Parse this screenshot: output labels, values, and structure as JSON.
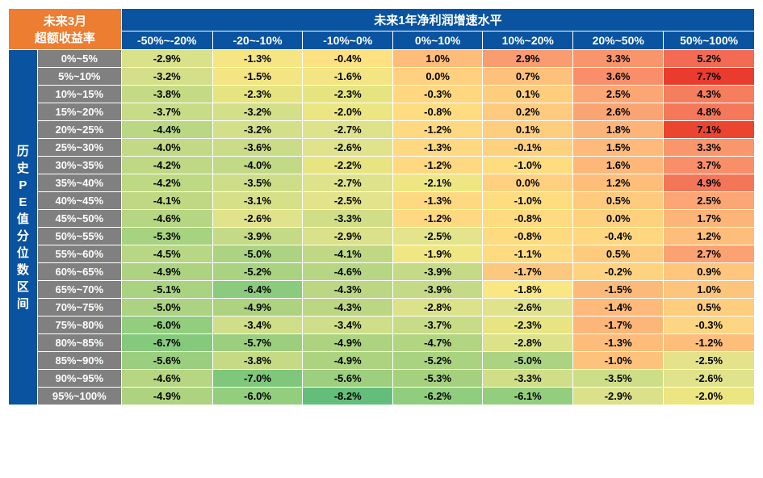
{
  "corner": [
    "未来3月",
    "超额收益率"
  ],
  "topHeader": "未来1年净利润增速水平",
  "sideHeader": "历史PE值分位数区间",
  "colHeaders": [
    "-50%~-20%",
    "-20~-10%",
    "-10%~0%",
    "0%~10%",
    "10%~20%",
    "20%~50%",
    "50%~100%"
  ],
  "rowLabels": [
    "0%~5%",
    "5%~10%",
    "10%~15%",
    "15%~20%",
    "20%~25%",
    "25%~30%",
    "30%~35%",
    "35%~40%",
    "40%~45%",
    "45%~50%",
    "50%~55%",
    "55%~60%",
    "60%~65%",
    "65%~70%",
    "70%~75%",
    "75%~80%",
    "80%~85%",
    "85%~90%",
    "90%~95%",
    "95%~100%"
  ],
  "values": [
    [
      "-2.9%",
      "-1.3%",
      "-0.4%",
      "1.0%",
      "2.9%",
      "3.3%",
      "5.2%"
    ],
    [
      "-3.2%",
      "-1.5%",
      "-1.6%",
      "0.0%",
      "0.7%",
      "3.6%",
      "7.7%"
    ],
    [
      "-3.8%",
      "-2.3%",
      "-2.3%",
      "-0.3%",
      "0.1%",
      "2.5%",
      "4.3%"
    ],
    [
      "-3.7%",
      "-3.2%",
      "-2.0%",
      "-0.8%",
      "0.2%",
      "2.6%",
      "4.8%"
    ],
    [
      "-4.4%",
      "-3.2%",
      "-2.7%",
      "-1.2%",
      "0.1%",
      "1.8%",
      "7.1%"
    ],
    [
      "-4.0%",
      "-3.6%",
      "-2.6%",
      "-1.3%",
      "-0.1%",
      "1.5%",
      "3.3%"
    ],
    [
      "-4.2%",
      "-4.0%",
      "-2.2%",
      "-1.2%",
      "-1.0%",
      "1.6%",
      "3.7%"
    ],
    [
      "-4.2%",
      "-3.5%",
      "-2.7%",
      "-2.1%",
      "0.0%",
      "1.2%",
      "4.9%"
    ],
    [
      "-4.1%",
      "-3.1%",
      "-2.5%",
      "-1.3%",
      "-1.0%",
      "0.5%",
      "2.5%"
    ],
    [
      "-4.6%",
      "-2.6%",
      "-3.3%",
      "-1.2%",
      "-0.8%",
      "0.0%",
      "1.7%"
    ],
    [
      "-5.3%",
      "-3.9%",
      "-2.9%",
      "-2.5%",
      "-0.8%",
      "-0.4%",
      "1.2%"
    ],
    [
      "-4.5%",
      "-5.0%",
      "-4.1%",
      "-1.9%",
      "-1.1%",
      "0.5%",
      "2.7%"
    ],
    [
      "-4.9%",
      "-5.2%",
      "-4.6%",
      "-3.9%",
      "-1.7%",
      "-0.2%",
      "0.9%"
    ],
    [
      "-5.1%",
      "-6.4%",
      "-4.3%",
      "-3.9%",
      "-1.8%",
      "-1.5%",
      "1.0%"
    ],
    [
      "-5.0%",
      "-4.9%",
      "-4.3%",
      "-2.8%",
      "-2.6%",
      "-1.4%",
      "0.5%"
    ],
    [
      "-6.0%",
      "-3.4%",
      "-3.4%",
      "-3.7%",
      "-2.3%",
      "-1.7%",
      "-0.3%"
    ],
    [
      "-6.7%",
      "-5.7%",
      "-4.9%",
      "-4.7%",
      "-2.8%",
      "-1.3%",
      "-1.2%"
    ],
    [
      "-5.6%",
      "-3.8%",
      "-4.9%",
      "-5.2%",
      "-5.0%",
      "-1.0%",
      "-2.5%"
    ],
    [
      "-4.6%",
      "-7.0%",
      "-5.6%",
      "-5.3%",
      "-3.3%",
      "-3.5%",
      "-2.6%"
    ],
    [
      "-4.9%",
      "-6.0%",
      "-8.2%",
      "-6.2%",
      "-6.1%",
      "-2.9%",
      "-2.0%"
    ]
  ],
  "colors": [
    [
      "#d9e18a",
      "#f5e683",
      "#fde182",
      "#fdbc7a",
      "#f99c6f",
      "#f9956c",
      "#f36b54"
    ],
    [
      "#d3df89",
      "#f3e583",
      "#f3e583",
      "#fed07f",
      "#fdc17b",
      "#f88f6a",
      "#ea3c2e"
    ],
    [
      "#c6da86",
      "#e6e481",
      "#e6e481",
      "#fed780",
      "#fecd7e",
      "#fba674",
      "#f57e5e"
    ],
    [
      "#c8db87",
      "#d3df89",
      "#ebe582",
      "#fedd81",
      "#fecb7e",
      "#fba473",
      "#f47859"
    ],
    [
      "#bad784",
      "#d3df89",
      "#dee28a",
      "#fed981",
      "#fecd7e",
      "#fcb479",
      "#ec452f"
    ],
    [
      "#c2d985",
      "#cadc87",
      "#e0e38b",
      "#fed981",
      "#fed17f",
      "#fdba7a",
      "#f9966c"
    ],
    [
      "#bed884",
      "#c2d985",
      "#e8e482",
      "#fed981",
      "#fedd81",
      "#fdb879",
      "#f88f69"
    ],
    [
      "#bed884",
      "#cddd88",
      "#dee28a",
      "#ede683",
      "#fed07f",
      "#fdbe7b",
      "#f47659"
    ],
    [
      "#c0d884",
      "#d5e089",
      "#e2e38b",
      "#fed981",
      "#fedd81",
      "#fecb7e",
      "#fba674"
    ],
    [
      "#b6d683",
      "#e0e38b",
      "#d1de88",
      "#fed981",
      "#fedb80",
      "#fed17f",
      "#fcb579"
    ],
    [
      "#a7d280",
      "#c4da86",
      "#dae18a",
      "#e4e48c",
      "#fedb80",
      "#fed780",
      "#fdbe7b"
    ],
    [
      "#b8d784",
      "#abd381",
      "#c0d884",
      "#f0e784",
      "#fedb80",
      "#fecb7e",
      "#fba273"
    ],
    [
      "#add381",
      "#a9d381",
      "#b6d683",
      "#c4da86",
      "#fcc87d",
      "#fed380",
      "#fdc67c"
    ],
    [
      "#a9d381",
      "#8bcb7d",
      "#bcd784",
      "#c4da86",
      "#f9e784",
      "#fcba7a",
      "#fdc47c"
    ],
    [
      "#abd381",
      "#add381",
      "#bcd784",
      "#dce28a",
      "#e0e38b",
      "#fdba7a",
      "#fecd7e"
    ],
    [
      "#93cd7e",
      "#cfde88",
      "#cfde88",
      "#c8db87",
      "#e8e482",
      "#fcb679",
      "#fed582"
    ],
    [
      "#84c97c",
      "#9bce7e",
      "#add381",
      "#b2d582",
      "#dce28a",
      "#fdbc7a",
      "#fdbe7b"
    ],
    [
      "#9bce7e",
      "#c6da86",
      "#add381",
      "#a9d381",
      "#abd381",
      "#fdc27b",
      "#e4e38b"
    ],
    [
      "#b6d683",
      "#7fc77b",
      "#9dcf7f",
      "#a5d17f",
      "#d1de88",
      "#cdde88",
      "#e0e38b"
    ],
    [
      "#add381",
      "#93cd7e",
      "#63be7b",
      "#91cd7e",
      "#93cd7e",
      "#dae18a",
      "#ebe582"
    ]
  ]
}
